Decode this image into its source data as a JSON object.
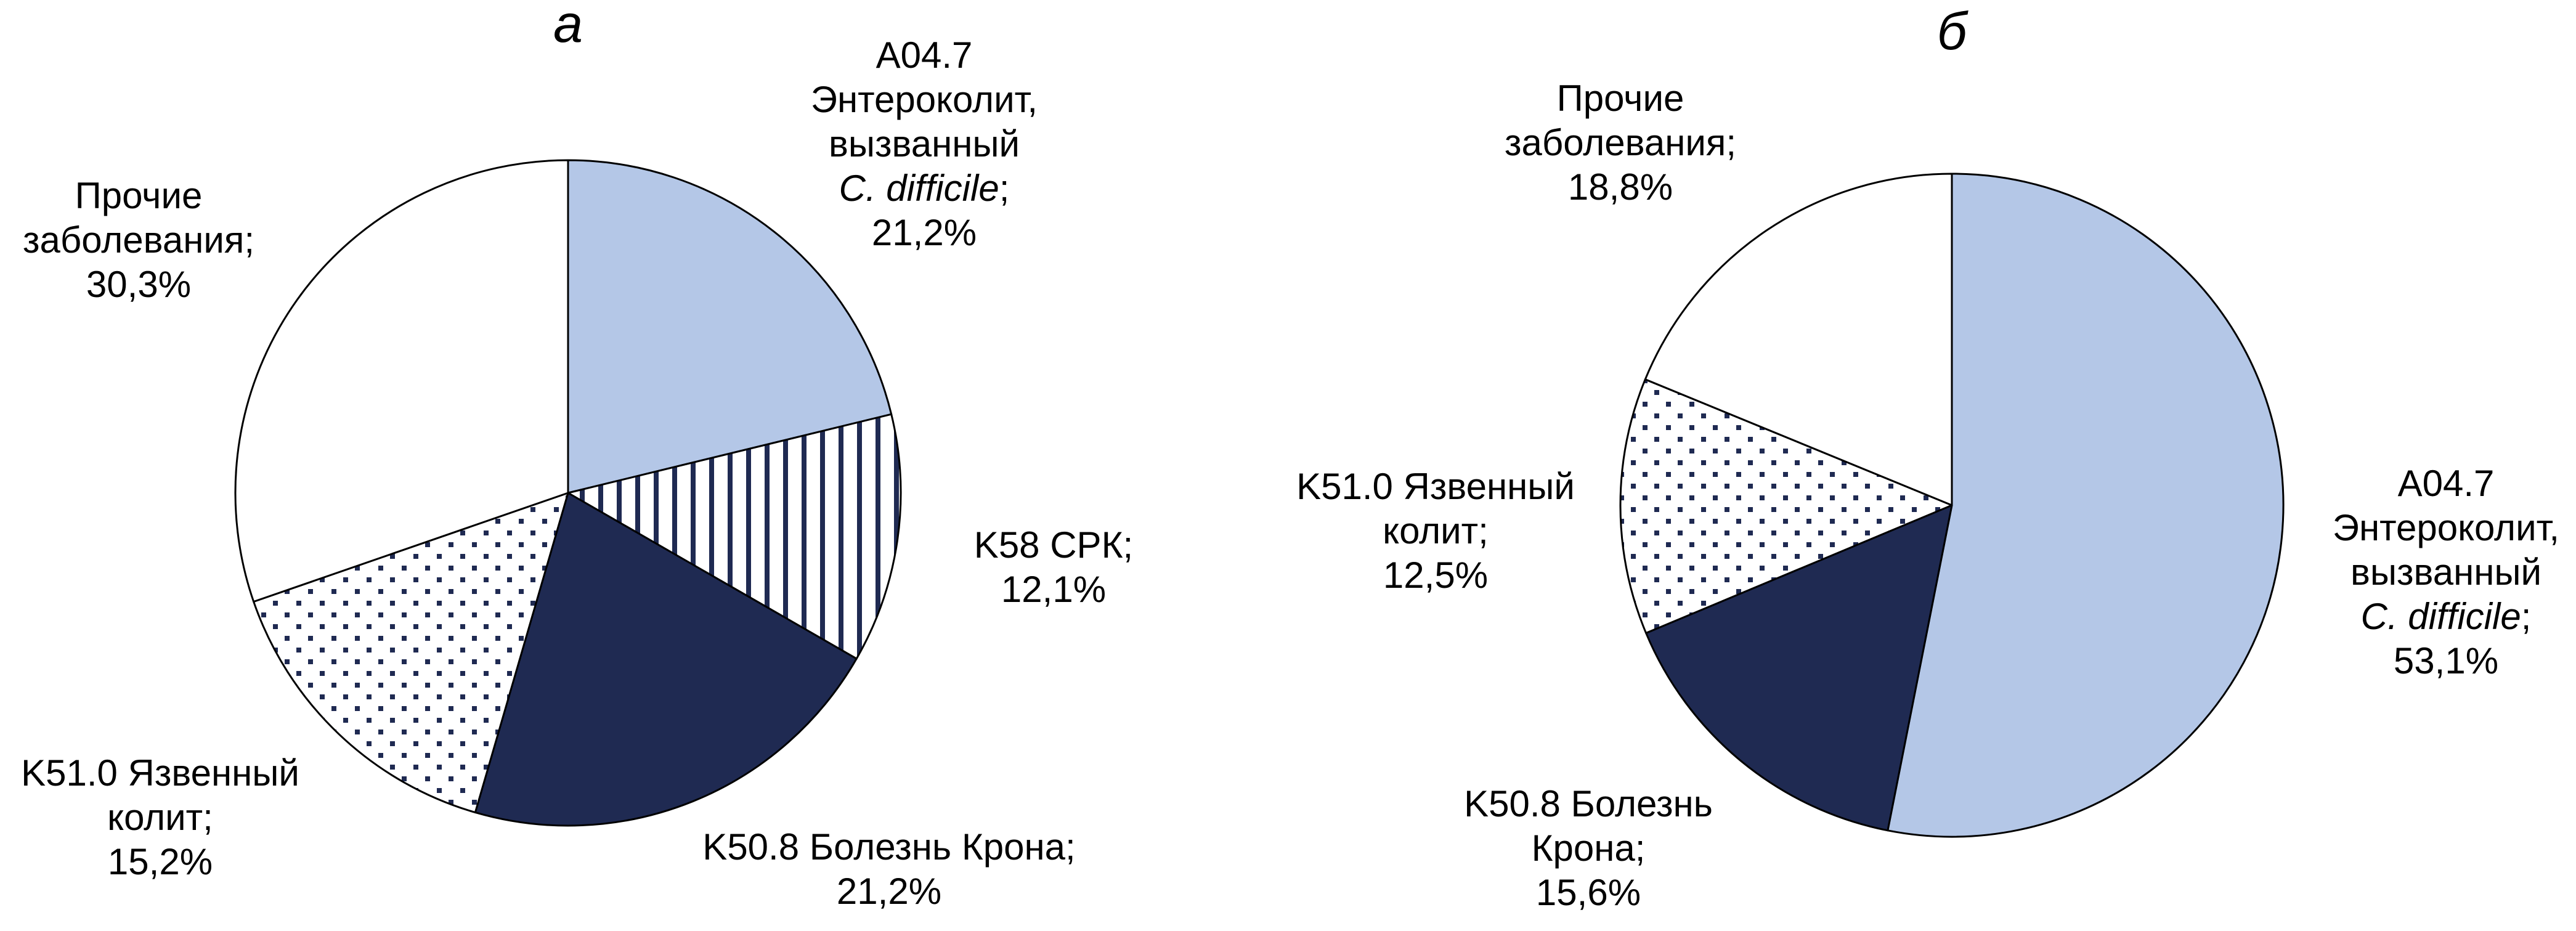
{
  "chart_data": [
    {
      "type": "pie",
      "panel_label": "а",
      "slices": [
        {
          "label_lines": [
            "A04.7",
            "Энтероколит,",
            "вызванный",
            "C. difficile;",
            "21,2%"
          ],
          "value": 21.2,
          "fill": "#b4c7e7",
          "pattern": "none"
        },
        {
          "label_lines": [
            "K58 СРК;",
            "12,1%"
          ],
          "value": 12.1,
          "fill": "#ffffff",
          "pattern": "vertical-lines"
        },
        {
          "label_lines": [
            "K50.8 Болезнь Крона;",
            "21,2%"
          ],
          "value": 21.2,
          "fill": "#1f2a52",
          "pattern": "none"
        },
        {
          "label_lines": [
            "K51.0 Язвенный",
            "колит;",
            "15,2%"
          ],
          "value": 15.2,
          "fill": "#ffffff",
          "pattern": "dots"
        },
        {
          "label_lines": [
            "Прочие",
            "заболевания;",
            "30,3%"
          ],
          "value": 30.3,
          "fill": "#ffffff",
          "pattern": "none"
        }
      ]
    },
    {
      "type": "pie",
      "panel_label": "б",
      "slices": [
        {
          "label_lines": [
            "A04.7",
            "Энтероколит,",
            "вызванный",
            "C. difficile;",
            "53,1%"
          ],
          "value": 53.1,
          "fill": "#b4c7e7",
          "pattern": "none"
        },
        {
          "label_lines": [
            "K50.8 Болезнь",
            "Крона;",
            "15,6%"
          ],
          "value": 15.6,
          "fill": "#1f2a52",
          "pattern": "none"
        },
        {
          "label_lines": [
            "K51.0 Язвенный",
            "колит;",
            "12,5%"
          ],
          "value": 12.5,
          "fill": "#ffffff",
          "pattern": "dots"
        },
        {
          "label_lines": [
            "Прочие",
            "заболевания;",
            "18,8%"
          ],
          "value": 18.8,
          "fill": "#ffffff",
          "pattern": "none"
        }
      ]
    }
  ]
}
